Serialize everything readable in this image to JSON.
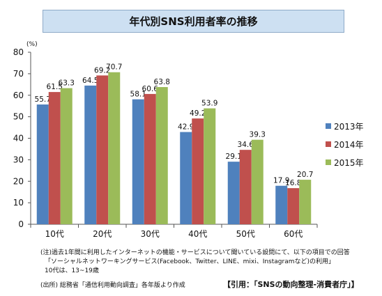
{
  "title": "年代別SNS利用者率の推移",
  "chart_data": {
    "type": "bar",
    "unit_label": "(%)",
    "categories": [
      "10代",
      "20代",
      "30代",
      "40代",
      "50代",
      "60代"
    ],
    "series": [
      {
        "name": "2013年",
        "color": "#4f81bd",
        "values": [
          55.7,
          64.5,
          58.1,
          42.9,
          29.1,
          17.9
        ]
      },
      {
        "name": "2014年",
        "color": "#c0504d",
        "values": [
          61.5,
          69.2,
          60.6,
          49.2,
          34.6,
          16.8
        ]
      },
      {
        "name": "2015年",
        "color": "#9bbb59",
        "values": [
          63.3,
          70.7,
          63.8,
          53.9,
          39.3,
          20.7
        ]
      }
    ],
    "ylim": [
      0,
      80
    ],
    "yticks": [
      0,
      10,
      20,
      30,
      40,
      50,
      60,
      70,
      80
    ],
    "legend_position": "right",
    "grid": false
  },
  "notes": {
    "line1": "(注)過去1年間に利用したインターネットの機能・サービスについて聞いている設問にて、以下の項目での回答",
    "line2": "「ソーシャルネットワーキングサービス(Facebook、Twitter、LINE、mixi、Instagramなど)の利用」",
    "line3": "10代は、13~19歳",
    "source": "(出所) 総務省「通信利用動向調査」各年版より作成"
  },
  "citation": "【引用：「SNSの動向整理-消費者庁」】"
}
